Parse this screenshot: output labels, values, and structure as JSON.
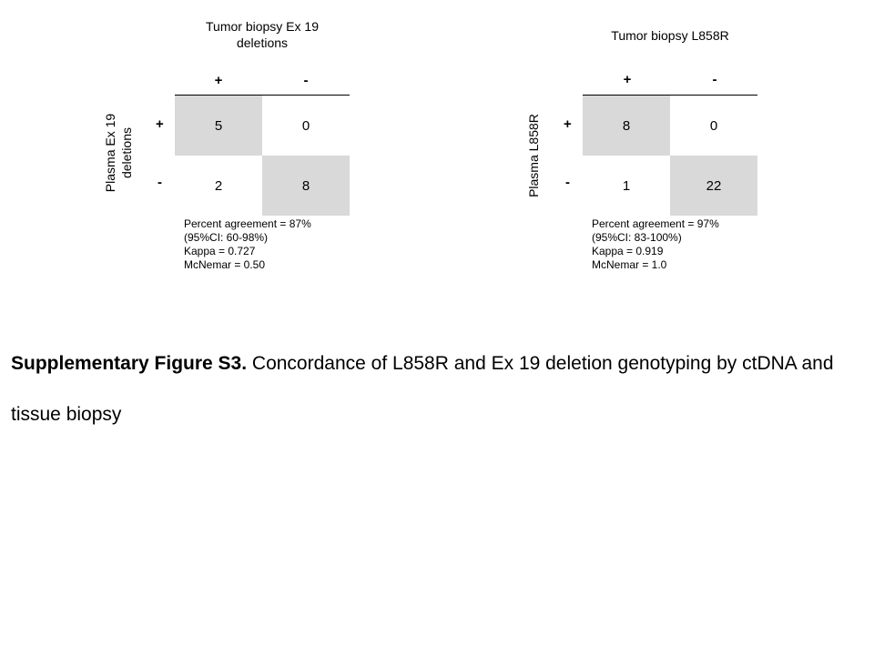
{
  "colors": {
    "shaded_cell": "#d9d9d9",
    "plain_cell": "#ffffff"
  },
  "tables": [
    {
      "title_line1": "Tumor biopsy Ex 19",
      "title_line2": "deletions",
      "row_label_line1": "Plasma Ex 19",
      "row_label_line2": "deletions",
      "col_pos": "+",
      "col_neg": "-",
      "row_pos": "+",
      "row_neg": "-",
      "cells": {
        "pp": "5",
        "pn": "0",
        "np": "2",
        "nn": "8"
      },
      "stats": [
        "Percent agreement = 87%",
        "(95%CI: 60-98%)",
        "Kappa = 0.727",
        "McNemar = 0.50"
      ]
    },
    {
      "title_line1": "Tumor biopsy L858R",
      "row_label_line1": "Plasma L858R",
      "col_pos": "+",
      "col_neg": "-",
      "row_pos": "+",
      "row_neg": "-",
      "cells": {
        "pp": "8",
        "pn": "0",
        "np": "1",
        "nn": "22"
      },
      "stats": [
        "Percent agreement = 97%",
        "(95%CI: 83-100%)",
        "Kappa = 0.919",
        "McNemar = 1.0"
      ]
    }
  ],
  "caption": {
    "label": "Supplementary Figure S3.",
    "text": " Concordance of L858R and Ex 19 deletion genotyping by ctDNA and tissue biopsy"
  }
}
